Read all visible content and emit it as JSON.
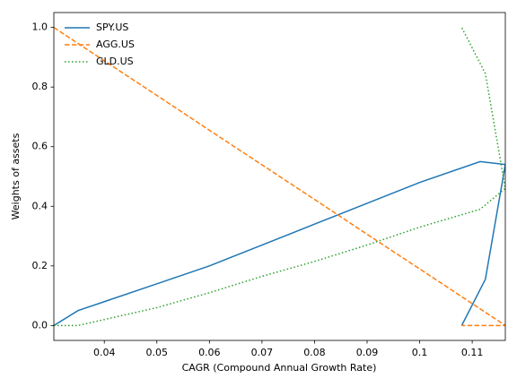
{
  "chart_data": {
    "type": "line",
    "xlabel": "CAGR (Compound Annual Growth Rate)",
    "ylabel": "Weights of assets",
    "x": [
      0.0304,
      0.035,
      0.04,
      0.05,
      0.06,
      0.07,
      0.08,
      0.09,
      0.1,
      0.1115,
      0.1163,
      0.1125,
      0.108
    ],
    "series": [
      {
        "name": "SPY.US",
        "color": "#1f77b4",
        "linestyle": "solid",
        "values": [
          0,
          0.05,
          0.08,
          0.14,
          0.2,
          0.27,
          0.34,
          0.41,
          0.48,
          0.55,
          0.54,
          0.155,
          0
        ]
      },
      {
        "name": "AGG.US",
        "color": "#ff7f0e",
        "linestyle": "dashed",
        "values": [
          1.0,
          0.946,
          0.888,
          0.772,
          0.655,
          0.539,
          0.423,
          0.306,
          0.19,
          0.056,
          0,
          0,
          0
        ]
      },
      {
        "name": "GLD.US",
        "color": "#2ca02c",
        "linestyle": "dotted",
        "values": [
          0,
          0.0,
          0.02,
          0.06,
          0.11,
          0.165,
          0.215,
          0.27,
          0.33,
          0.39,
          0.46,
          0.845,
          1.0
        ]
      }
    ],
    "xlim": [
      0.0304,
      0.1163
    ],
    "ylim": [
      -0.05,
      1.05
    ],
    "xticks": [
      0.04,
      0.05,
      0.06,
      0.07,
      0.08,
      0.09,
      0.1,
      0.11
    ],
    "yticks": [
      {
        "value": 0,
        "label": "0.0"
      },
      {
        "value": 0.2,
        "label": "0.2"
      },
      {
        "value": 0.4,
        "label": "0.4"
      },
      {
        "value": 0.6,
        "label": "0.6"
      },
      {
        "value": 0.8,
        "label": "0.8"
      },
      {
        "value": 1.0,
        "label": "1.0"
      }
    ],
    "legend": "upper left"
  }
}
